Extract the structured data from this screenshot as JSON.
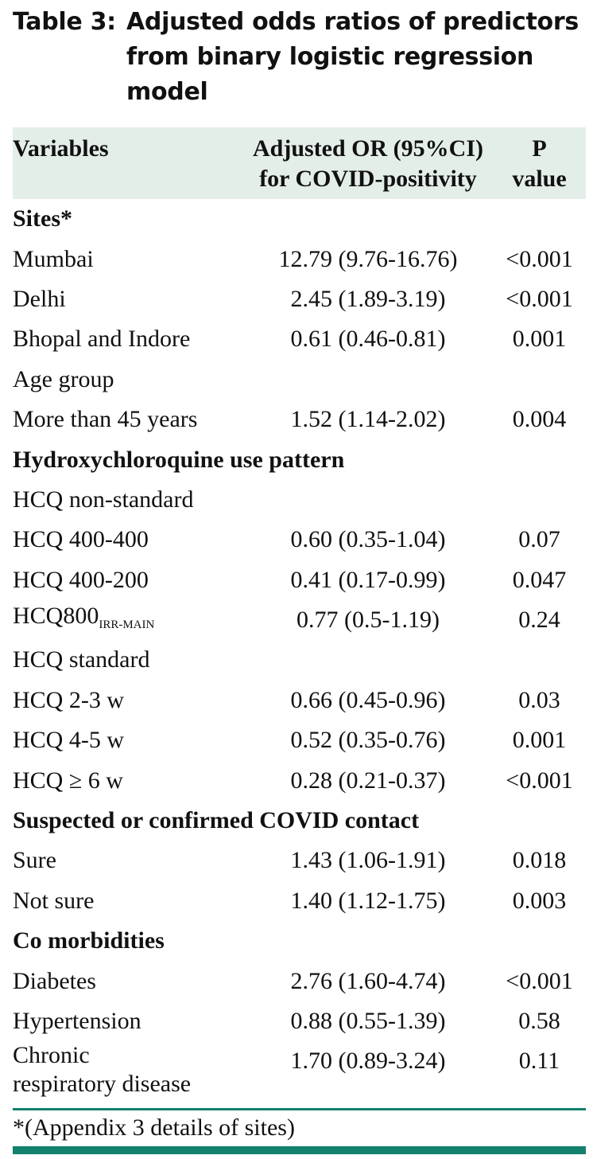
{
  "table": {
    "label": "Table 3:",
    "title": "Adjusted odds ratios of predictors from binary logistic regression model",
    "header": [
      [
        "Variables"
      ],
      [
        "Adjusted OR (95%CI)",
        "for COVID-positivity"
      ],
      [
        "P",
        "value"
      ]
    ],
    "rows": [
      {
        "variable": "Sites*",
        "bold": true
      },
      {
        "variable": "Mumbai",
        "or": "12.79 (9.76-16.76)",
        "p": "<0.001"
      },
      {
        "variable": "Delhi",
        "or": "2.45 (1.89-3.19)",
        "p": "<0.001"
      },
      {
        "variable": "Bhopal and Indore",
        "or": "0.61 (0.46-0.81)",
        "p": "0.001"
      },
      {
        "variable": "Age group"
      },
      {
        "variable": "More than 45 years",
        "or": "1.52 (1.14-2.02)",
        "p": "0.004"
      },
      {
        "variable": "Hydroxychloroquine use pattern",
        "bold": true
      },
      {
        "variable": "HCQ non-standard"
      },
      {
        "variable": "HCQ 400-400",
        "or": "0.60 (0.35-1.04)",
        "p": "0.07"
      },
      {
        "variable": "HCQ 400-200",
        "or": "0.41 (0.17-0.99)",
        "p": "0.047"
      },
      {
        "variable": "HCQ800",
        "subscript": "IRR-MAIN",
        "or": "0.77 (0.5-1.19)",
        "p": "0.24"
      },
      {
        "variable": "HCQ standard"
      },
      {
        "variable": "HCQ 2-3 w",
        "or": "0.66 (0.45-0.96)",
        "p": "0.03"
      },
      {
        "variable": "HCQ 4-5 w",
        "or": "0.52 (0.35-0.76)",
        "p": "0.001"
      },
      {
        "variable": "HCQ ≥ 6 w",
        "or": "0.28 (0.21-0.37)",
        "p": "<0.001"
      },
      {
        "variable": "Suspected or confirmed COVID contact",
        "bold": true
      },
      {
        "variable": "Sure",
        "or": "1.43 (1.06-1.91)",
        "p": "0.018"
      },
      {
        "variable": "Not sure",
        "or": "1.40 (1.12-1.75)",
        "p": "0.003"
      },
      {
        "variable": "Co morbidities",
        "bold": true
      },
      {
        "variable": "Diabetes",
        "or": "2.76 (1.60-4.74)",
        "p": "<0.001"
      },
      {
        "variable": "Hypertension",
        "or": "0.88 (0.55-1.39)",
        "p": "0.58"
      },
      {
        "variable": [
          "Chronic",
          "respiratory disease"
        ],
        "or": "1.70 (0.89-3.24)",
        "p": "0.11"
      }
    ],
    "footnote": "*(Appendix 3 details of sites)"
  }
}
